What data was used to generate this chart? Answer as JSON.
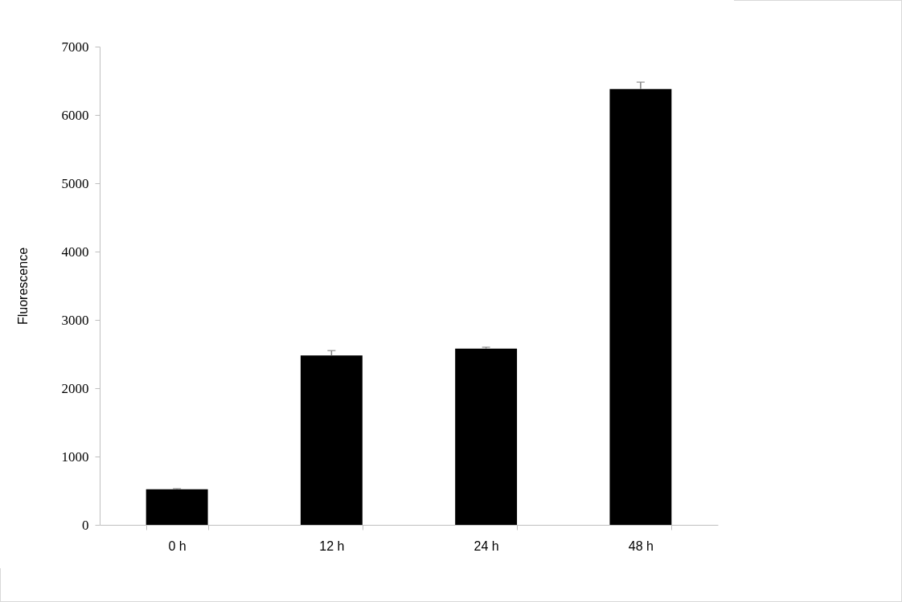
{
  "chart_data": {
    "type": "bar",
    "ylabel": "Fluorescence",
    "categories": [
      "0 h",
      "12 h",
      "24 h",
      "48 h"
    ],
    "values": [
      520,
      2480,
      2580,
      6380
    ],
    "color": "#000000",
    "errors": [
      [
        520,
        530
      ],
      [
        2480,
        2550
      ],
      [
        2580,
        2600
      ],
      [
        6380,
        6480
      ]
    ],
    "ylim": [
      0,
      7000
    ],
    "yticks": [
      0,
      1000,
      2000,
      3000,
      4000,
      5000,
      6000,
      7000
    ],
    "grid": false
  }
}
